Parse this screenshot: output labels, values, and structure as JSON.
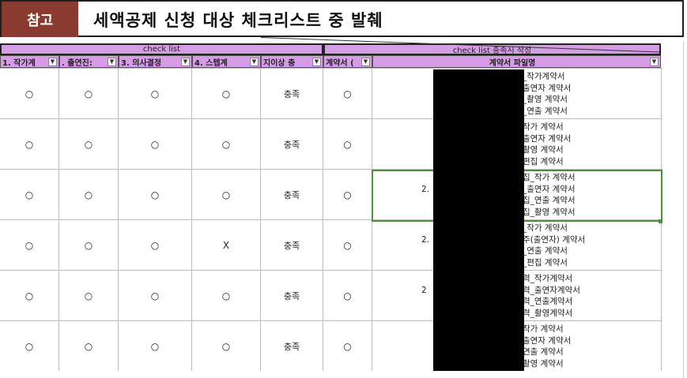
{
  "banner": {
    "tag": "참고",
    "title": "세액공제 신청 대상 체크리스트 중 발췌"
  },
  "sheet": {
    "group_headers": [
      "check list",
      "check list 충족시 작성"
    ],
    "columns": [
      "1. 작가계",
      ". 출연진:",
      "3. 의사결정",
      "4. 스텝계",
      "지이상 충",
      "계약서 (",
      "계약서 파일명"
    ],
    "rows": [
      {
        "c": [
          "○",
          "○",
          "○",
          "○",
          "충족",
          "○"
        ],
        "prefix": "",
        "files": [
          "_작가계약서",
          "출연자 계약서",
          "_촬영 계약서",
          "_연출 계약서"
        ]
      },
      {
        "c": [
          "○",
          "○",
          "○",
          "○",
          "충족",
          "○"
        ],
        "prefix": "",
        "files": [
          "작가 계약서",
          "출연자 계약서",
          "촬영 계약서",
          "편집 계약서"
        ]
      },
      {
        "c": [
          "○",
          "○",
          "○",
          "○",
          "충족",
          "○"
        ],
        "prefix": "2.",
        "files": [
          "집_작가 계약서",
          "_출연자 계약서",
          "집_연출 계약서",
          "집_촬영 계약서"
        ]
      },
      {
        "c": [
          "○",
          "○",
          "○",
          "X",
          "충족",
          "○"
        ],
        "prefix": "2.",
        "files": [
          "_작가 계약서",
          "주(출연자) 계약서",
          "_연출 계약서",
          "_편집 계약서"
        ]
      },
      {
        "c": [
          "○",
          "○",
          "○",
          "○",
          "충족",
          "○"
        ],
        "prefix": "2",
        "files": [
          "력_작가계약서",
          "력_출연자계약서",
          "력_연출계약서",
          "력_촬영계약서"
        ]
      },
      {
        "c": [
          "○",
          "○",
          "○",
          "○",
          "충족",
          "○"
        ],
        "prefix": "",
        "files": [
          "작가 계약서",
          "출연자 계약서",
          "연출 계약서",
          "촬영 계약서"
        ]
      }
    ]
  },
  "colors": {
    "header_purple": "#d79ce6",
    "tag_bg": "#8b3a2f",
    "selection_green": "#4e8f3c",
    "redaction": "#000000"
  }
}
